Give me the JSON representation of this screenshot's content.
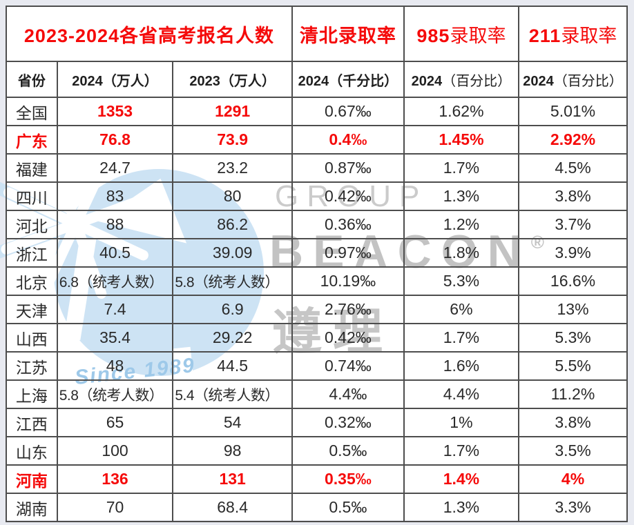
{
  "page": {
    "outer_background": "#e8eaf1",
    "sheet_background": "#ffffff",
    "grid_color": "#4d4d4d"
  },
  "colors": {
    "accent_red": "#f50a0a",
    "text_black": "#2a2a2a",
    "watermark_blue": "#cde3f4",
    "watermark_gray": "#c6c6c6"
  },
  "header": {
    "group_title": "2023-2024各省高考报名人数",
    "col_qingbei": "清北录取率",
    "col_985_num": "985",
    "col_985_suffix": "录取率",
    "col_211_num": "211",
    "col_211_suffix": "录取率"
  },
  "subheader": {
    "province": "省份",
    "c2024": "2024（万人）",
    "c2023": "2023（万人）",
    "qb": "2024（千分比）",
    "p985_num": "2024",
    "p985_suffix": "（百分比）",
    "p211_num": "2024",
    "p211_suffix": "（百分比）"
  },
  "watermark": {
    "group": "GROUP",
    "beacon": "BEACON",
    "reg": "®",
    "zunli": "遵理",
    "since": "Since 1989"
  },
  "chart_data": {
    "type": "table",
    "title": "2023-2024各省高考报名人数 / 清北·985·211录取率",
    "columns": [
      "省份",
      "2024（万人）",
      "2023（万人）",
      "清北录取率 2024（千分比）",
      "985录取率 2024（百分比）",
      "211录取率 2024（百分比）"
    ],
    "rows": [
      [
        "全国",
        "1353",
        "1291",
        "0.67‰",
        "1.62%",
        "5.01%"
      ],
      [
        "广东",
        "76.8",
        "73.9",
        "0.4‰",
        "1.45%",
        "2.92%"
      ],
      [
        "福建",
        "24.7",
        "23.2",
        "0.87‰",
        "1.7%",
        "4.5%"
      ],
      [
        "四川",
        "83",
        "80",
        "0.42‰",
        "1.3%",
        "3.8%"
      ],
      [
        "河北",
        "88",
        "86.2",
        "0.36‰",
        "1.2%",
        "3.7%"
      ],
      [
        "浙江",
        "40.5",
        "39.09",
        "0.97‰",
        "1.8%",
        "3.9%"
      ],
      [
        "北京",
        "6.8（统考人数）",
        "5.8（统考人数）",
        "10.19‰",
        "5.3%",
        "16.6%"
      ],
      [
        "天津",
        "7.4",
        "6.9",
        "2.76‰",
        "6%",
        "13%"
      ],
      [
        "山西",
        "35.4",
        "29.22",
        "0.42‰",
        "1.7%",
        "5.3%"
      ],
      [
        "江苏",
        "48",
        "44.5",
        "0.74‰",
        "1.6%",
        "5.5%"
      ],
      [
        "上海",
        "5.8（统考人数）",
        "5.4（统考人数）",
        "4.4‰",
        "4.4%",
        "11.2%"
      ],
      [
        "江西",
        "65",
        "54",
        "0.32‰",
        "1%",
        "3.8%"
      ],
      [
        "山东",
        "100",
        "98",
        "0.5‰",
        "1.7%",
        "3.5%"
      ],
      [
        "河南",
        "136",
        "131",
        "0.35‰",
        "1.4%",
        "4%"
      ],
      [
        "湖南",
        "70",
        "68.4",
        "0.5‰",
        "1.3%",
        "3.3%"
      ]
    ]
  },
  "table": {
    "row_emphasis": [
      "values",
      "row",
      "none",
      "none",
      "none",
      "none",
      "none",
      "none",
      "none",
      "none",
      "none",
      "none",
      "none",
      "row",
      "none"
    ],
    "left_aligned_rows": [
      6,
      10
    ]
  }
}
